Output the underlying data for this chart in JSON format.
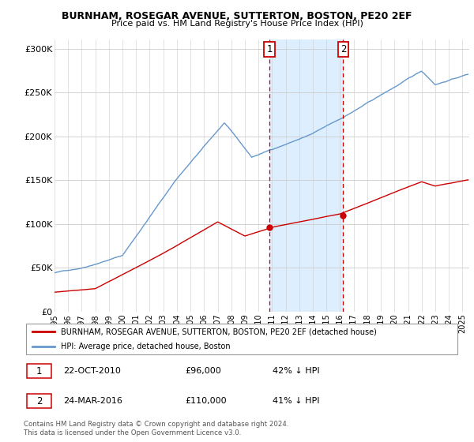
{
  "title": "BURNHAM, ROSEGAR AVENUE, SUTTERTON, BOSTON, PE20 2EF",
  "subtitle": "Price paid vs. HM Land Registry's House Price Index (HPI)",
  "legend_line1": "BURNHAM, ROSEGAR AVENUE, SUTTERTON, BOSTON, PE20 2EF (detached house)",
  "legend_line2": "HPI: Average price, detached house, Boston",
  "annotation1": {
    "label": "1",
    "date": "22-OCT-2010",
    "price": "£96,000",
    "pct": "42% ↓ HPI"
  },
  "annotation2": {
    "label": "2",
    "date": "24-MAR-2016",
    "price": "£110,000",
    "pct": "41% ↓ HPI"
  },
  "footnote": "Contains HM Land Registry data © Crown copyright and database right 2024.\nThis data is licensed under the Open Government Licence v3.0.",
  "hpi_color": "#6699cc",
  "price_color": "#cc0000",
  "shade_color": "#ddeeff",
  "ylim": [
    0,
    310000
  ],
  "yticks": [
    0,
    50000,
    100000,
    150000,
    200000,
    250000,
    300000
  ],
  "ytick_labels": [
    "£0",
    "£50K",
    "£100K",
    "£150K",
    "£200K",
    "£250K",
    "£300K"
  ],
  "marker1_x": 2010.81,
  "marker1_y": 96000,
  "marker2_x": 2016.23,
  "marker2_y": 110000,
  "shade_x1": 2010.81,
  "shade_x2": 2016.23,
  "xmin": 1995,
  "xmax": 2025.5
}
